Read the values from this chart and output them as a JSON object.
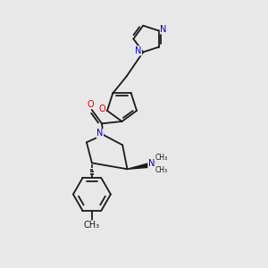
{
  "bg_color": "#e8e8e8",
  "bond_color": "#1a1a1a",
  "N_color": "#0000cc",
  "O_color": "#dd0000",
  "font_size_atom": 7.0,
  "line_width": 1.3,
  "figsize": [
    3.0,
    3.0
  ],
  "dpi": 100,
  "xlim": [
    0,
    10
  ],
  "ylim": [
    0,
    10
  ]
}
